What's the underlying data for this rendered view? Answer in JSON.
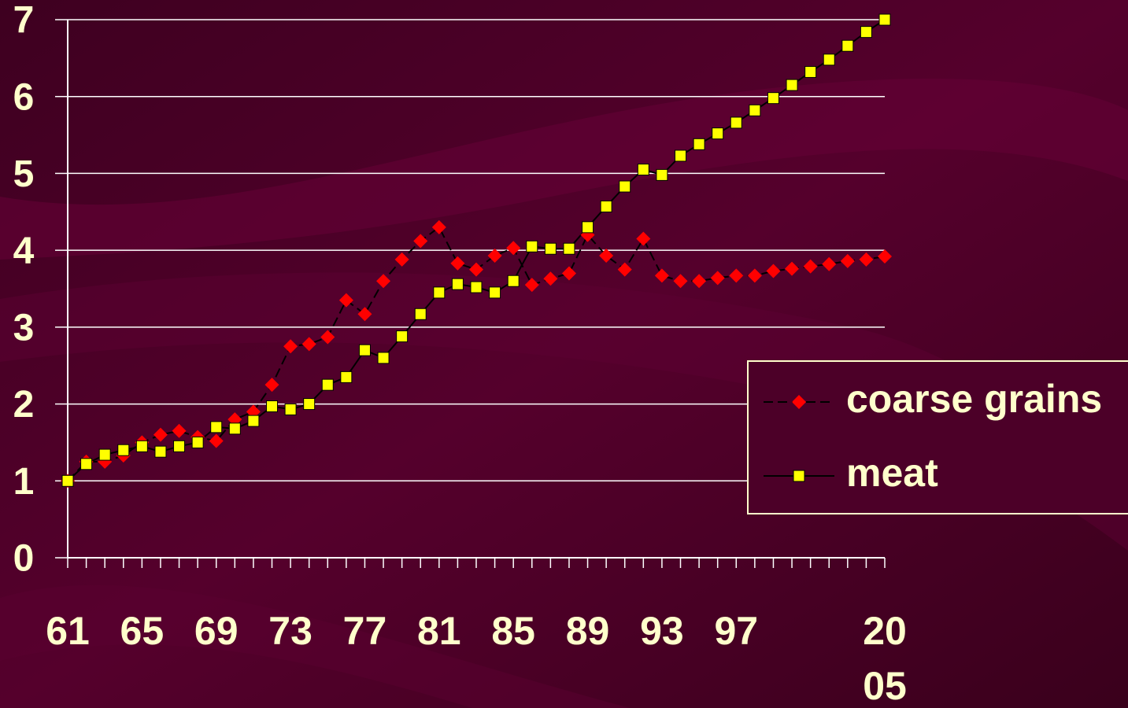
{
  "chart_data": {
    "type": "line",
    "categories": [
      "61",
      null,
      null,
      null,
      "65",
      null,
      null,
      null,
      "69",
      null,
      null,
      null,
      "73",
      null,
      null,
      null,
      "77",
      null,
      null,
      null,
      "81",
      null,
      null,
      null,
      "85",
      null,
      null,
      null,
      "89",
      null,
      null,
      null,
      "93",
      null,
      null,
      null,
      "97",
      null,
      null,
      null,
      null,
      null,
      null,
      null,
      "2005"
    ],
    "series": [
      {
        "name": "coarse grains",
        "color": "#ff0000",
        "line_color": "#000000",
        "dashed": true,
        "marker": "diamond",
        "values": [
          1.0,
          1.25,
          1.25,
          1.33,
          1.5,
          1.6,
          1.65,
          1.57,
          1.52,
          1.8,
          1.9,
          2.25,
          2.75,
          2.78,
          2.87,
          3.35,
          3.17,
          3.6,
          3.88,
          4.12,
          4.3,
          3.83,
          3.75,
          3.93,
          4.03,
          3.55,
          3.63,
          3.7,
          4.2,
          3.93,
          3.75,
          4.15,
          3.67,
          3.6,
          3.6,
          3.64,
          3.67,
          3.67,
          3.73,
          3.76,
          3.79,
          3.82,
          3.86,
          3.88,
          3.92
        ]
      },
      {
        "name": "meat",
        "color": "#ffff00",
        "line_color": "#000000",
        "dashed": false,
        "marker": "square",
        "values": [
          1.0,
          1.22,
          1.34,
          1.4,
          1.45,
          1.38,
          1.45,
          1.5,
          1.7,
          1.68,
          1.78,
          1.97,
          1.93,
          2.0,
          2.25,
          2.35,
          2.7,
          2.6,
          2.88,
          3.17,
          3.45,
          3.56,
          3.52,
          3.45,
          3.6,
          4.05,
          4.02,
          4.02,
          4.3,
          4.57,
          4.83,
          5.05,
          4.98,
          5.23,
          5.38,
          5.52,
          5.66,
          5.82,
          5.98,
          6.15,
          6.32,
          6.48,
          6.66,
          6.84,
          7.0
        ]
      }
    ],
    "ylim": [
      0,
      7
    ],
    "yticks": [
      0,
      1,
      2,
      3,
      4,
      5,
      6,
      7
    ],
    "grid": true,
    "legend": "right"
  }
}
